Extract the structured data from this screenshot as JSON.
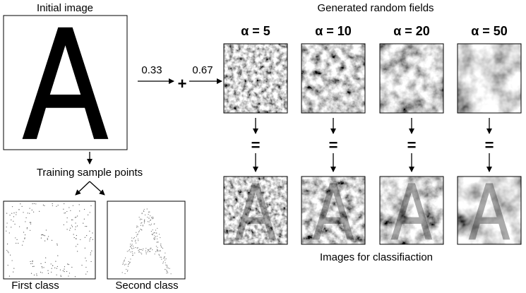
{
  "initial_image": {
    "title": "Initial image"
  },
  "weights": [
    "0.33",
    "0.67"
  ],
  "plus": "+",
  "fields": {
    "title": "Generated random fields",
    "alphas": [
      "α = 5",
      "α = 10",
      "α = 20",
      "α = 50"
    ]
  },
  "equals": "=",
  "results": {
    "caption": "Images for classifiaction"
  },
  "training": {
    "title": "Training sample points",
    "classes": [
      "First class",
      "Second class"
    ]
  }
}
